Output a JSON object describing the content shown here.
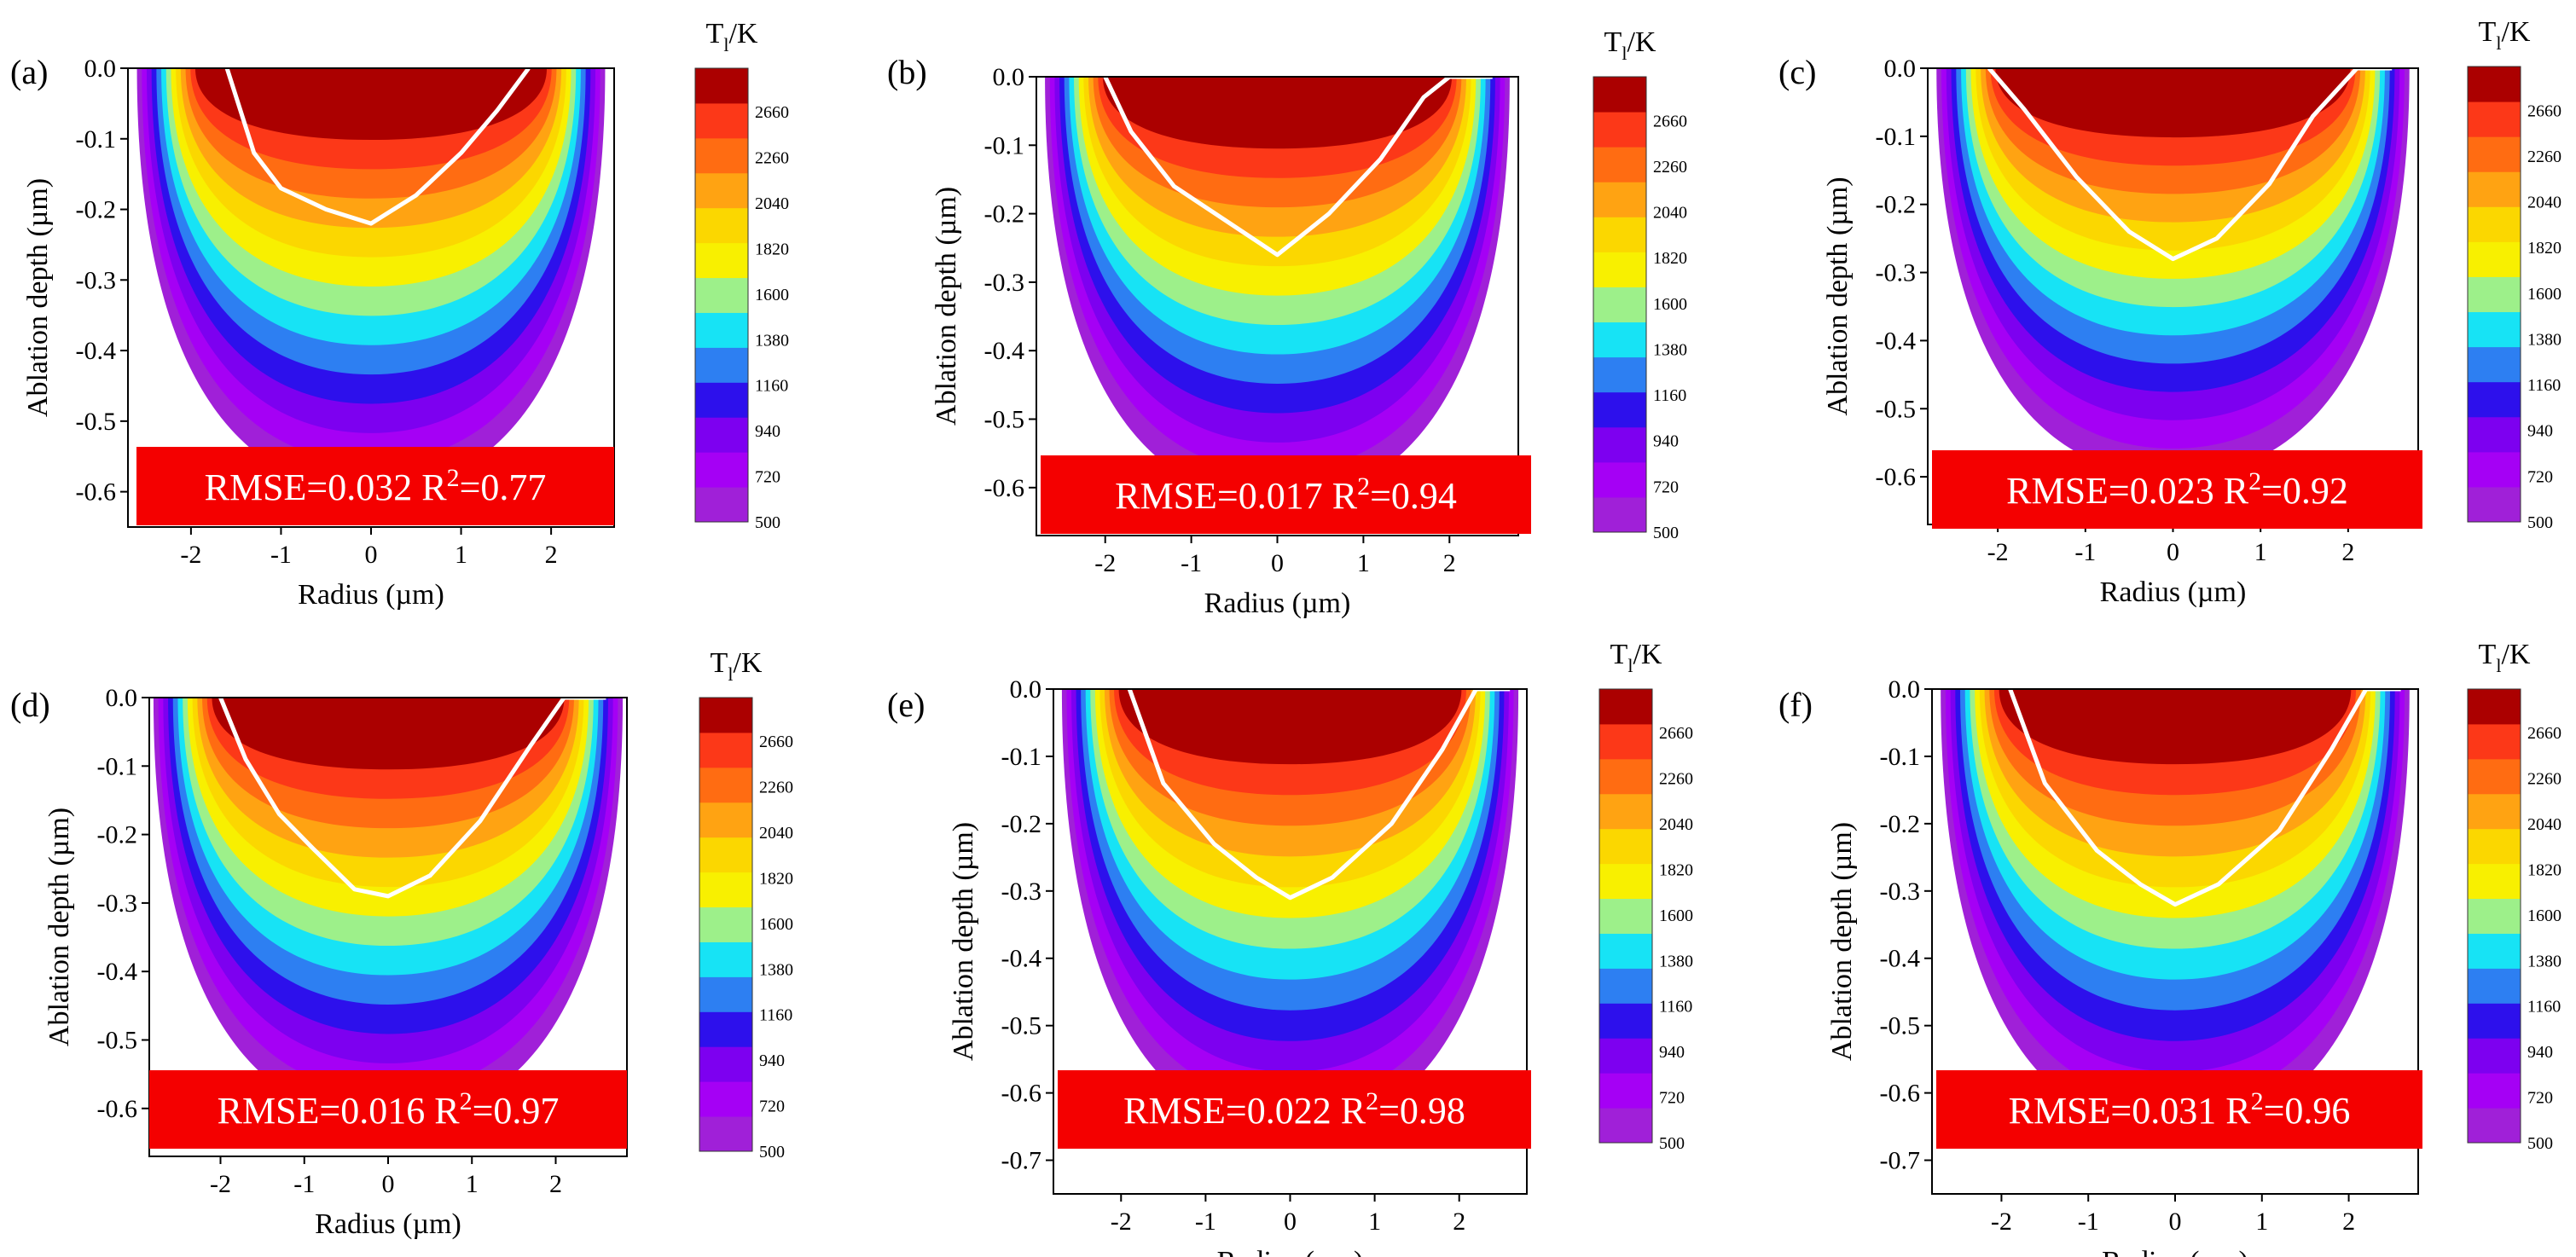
{
  "colors": {
    "bands": [
      "#a020d8",
      "#a500f5",
      "#7d00f0",
      "#2d10ec",
      "#2d7ff2",
      "#17e3f5",
      "#9df08a",
      "#f8f000",
      "#fbd700",
      "#ffa312",
      "#ff6c12",
      "#fc3818",
      "#ab0000"
    ],
    "fit_line": "#ffffff",
    "badge": "#f40000"
  },
  "colorbar": {
    "title_main": "T",
    "title_sub": "l",
    "title_tail": "/K",
    "tick_labels": [
      "500",
      "720",
      "940",
      "1160",
      "1380",
      "1600",
      "1820",
      "2040",
      "2260",
      "2660"
    ]
  },
  "chart_data": [
    {
      "type": "heatmap",
      "panel": "(a)",
      "xlabel": "Radius (µm)",
      "ylabel": "Ablation depth (µm)",
      "xlim": [
        -2.7,
        2.7
      ],
      "ylim": [
        -0.65,
        0
      ],
      "xticks": [
        -2,
        -1,
        0,
        1,
        2
      ],
      "yticks": [
        0.0,
        -0.1,
        -0.2,
        -0.3,
        -0.4,
        -0.5,
        -0.6
      ],
      "tick_labels_x": [
        "-2",
        "-1",
        "0",
        "1",
        "2"
      ],
      "tick_labels_y": [
        "0.0",
        "-0.1",
        "-0.2",
        "-0.3",
        "-0.4",
        "-0.5",
        "-0.6"
      ],
      "field": {
        "half_width_um": 2.6,
        "depth_um": 0.6
      },
      "ablation_profile": {
        "x": [
          -1.6,
          -1.3,
          -1.0,
          -0.5,
          0.0,
          0.5,
          1.0,
          1.4,
          1.75
        ],
        "y": [
          0.0,
          -0.12,
          -0.17,
          -0.2,
          -0.22,
          -0.18,
          -0.12,
          -0.06,
          0.0
        ]
      },
      "rmse_text": "RMSE=0.032 R",
      "r2_text": "=0.77",
      "superscript": "2",
      "colorbar_label": "T_l/K"
    },
    {
      "type": "heatmap",
      "panel": "(b)",
      "xlabel": "Radius (µm)",
      "ylabel": "Ablation depth (µm)",
      "xlim": [
        -2.8,
        2.8
      ],
      "ylim": [
        -0.67,
        0
      ],
      "xticks": [
        -2,
        -1,
        0,
        1,
        2
      ],
      "yticks": [
        0.0,
        -0.1,
        -0.2,
        -0.3,
        -0.4,
        -0.5,
        -0.6
      ],
      "tick_labels_x": [
        "-2",
        "-1",
        "0",
        "1",
        "2"
      ],
      "tick_labels_y": [
        "0.0",
        "-0.1",
        "-0.2",
        "-0.3",
        "-0.4",
        "-0.5",
        "-0.6"
      ],
      "field": {
        "half_width_um": 2.7,
        "depth_um": 0.62
      },
      "ablation_profile": {
        "x": [
          -2.0,
          -1.7,
          -1.2,
          -0.6,
          0.0,
          0.6,
          1.2,
          1.7,
          2.0,
          2.5
        ],
        "y": [
          0.0,
          -0.08,
          -0.16,
          -0.21,
          -0.26,
          -0.2,
          -0.12,
          -0.03,
          0.0,
          0.0
        ]
      },
      "rmse_text": "RMSE=0.017 R",
      "r2_text": "=0.94",
      "superscript": "2",
      "colorbar_label": "T_l/K"
    },
    {
      "type": "heatmap",
      "panel": "(c)",
      "xlabel": "Radius (µm)",
      "ylabel": "Ablation depth (µm)",
      "xlim": [
        -2.8,
        2.8
      ],
      "ylim": [
        -0.67,
        0
      ],
      "xticks": [
        -2,
        -1,
        0,
        1,
        2
      ],
      "yticks": [
        0.0,
        -0.1,
        -0.2,
        -0.3,
        -0.4,
        -0.5,
        -0.6
      ],
      "tick_labels_x": [
        "-2",
        "-1",
        "0",
        "1",
        "2"
      ],
      "tick_labels_y": [
        "0.0",
        "-0.1",
        "-0.2",
        "-0.3",
        "-0.4",
        "-0.5",
        "-0.6"
      ],
      "field": {
        "half_width_um": 2.7,
        "depth_um": 0.6
      },
      "ablation_profile": {
        "x": [
          -2.1,
          -1.7,
          -1.1,
          -0.5,
          0.0,
          0.5,
          1.1,
          1.6,
          2.1,
          2.5
        ],
        "y": [
          0.0,
          -0.06,
          -0.16,
          -0.24,
          -0.28,
          -0.25,
          -0.17,
          -0.07,
          0.0,
          0.0
        ]
      },
      "rmse_text": "RMSE=0.023 R",
      "r2_text": "=0.92",
      "superscript": "2",
      "colorbar_label": "T_l/K"
    },
    {
      "type": "heatmap",
      "panel": "(d)",
      "xlabel": "Radius (µm)",
      "ylabel": "Ablation depth (µm)",
      "xlim": [
        -2.85,
        2.85
      ],
      "ylim": [
        -0.67,
        0
      ],
      "xticks": [
        -2,
        -1,
        0,
        1,
        2
      ],
      "yticks": [
        0.0,
        -0.1,
        -0.2,
        -0.3,
        -0.4,
        -0.5,
        -0.6
      ],
      "tick_labels_x": [
        "-2",
        "-1",
        "0",
        "1",
        "2"
      ],
      "tick_labels_y": [
        "0.0",
        "-0.1",
        "-0.2",
        "-0.3",
        "-0.4",
        "-0.5",
        "-0.6"
      ],
      "field": {
        "half_width_um": 2.8,
        "depth_um": 0.62
      },
      "ablation_profile": {
        "x": [
          -2.0,
          -1.7,
          -1.3,
          -0.9,
          -0.4,
          0.0,
          0.5,
          1.1,
          1.7,
          2.1,
          2.6
        ],
        "y": [
          0.0,
          -0.09,
          -0.17,
          -0.22,
          -0.28,
          -0.29,
          -0.26,
          -0.18,
          -0.07,
          0.0,
          0.0
        ]
      },
      "rmse_text": "RMSE=0.016 R",
      "r2_text": "=0.97",
      "superscript": "2",
      "colorbar_label": "T_l/K"
    },
    {
      "type": "heatmap",
      "panel": "(e)",
      "xlabel": "Radius (µm)",
      "ylabel": "Ablation depth (µm)",
      "xlim": [
        -2.8,
        2.8
      ],
      "ylim": [
        -0.75,
        0
      ],
      "xticks": [
        -2,
        -1,
        0,
        1,
        2
      ],
      "yticks": [
        0.0,
        -0.1,
        -0.2,
        -0.3,
        -0.4,
        -0.5,
        -0.6,
        -0.7
      ],
      "tick_labels_x": [
        "-2",
        "-1",
        "0",
        "1",
        "2"
      ],
      "tick_labels_y": [
        "0.0",
        "-0.1",
        "-0.2",
        "-0.3",
        "-0.4",
        "-0.5",
        "-0.6",
        "-0.7"
      ],
      "field": {
        "half_width_um": 2.7,
        "depth_um": 0.66
      },
      "ablation_profile": {
        "x": [
          -1.9,
          -1.5,
          -0.9,
          -0.4,
          0.0,
          0.5,
          1.2,
          1.8,
          2.2,
          2.6
        ],
        "y": [
          0.0,
          -0.14,
          -0.23,
          -0.28,
          -0.31,
          -0.28,
          -0.2,
          -0.09,
          0.0,
          0.0
        ]
      },
      "rmse_text": "RMSE=0.022 R",
      "r2_text": "=0.98",
      "superscript": "2",
      "colorbar_label": "T_l/K"
    },
    {
      "type": "heatmap",
      "panel": "(f)",
      "xlabel": "Radius (µm)",
      "ylabel": "Ablation depth (µm)",
      "xlim": [
        -2.8,
        2.8
      ],
      "ylim": [
        -0.75,
        0
      ],
      "xticks": [
        -2,
        -1,
        0,
        1,
        2
      ],
      "yticks": [
        0.0,
        -0.1,
        -0.2,
        -0.3,
        -0.4,
        -0.5,
        -0.6,
        -0.7
      ],
      "tick_labels_x": [
        "-2",
        "-1",
        "0",
        "1",
        "2"
      ],
      "tick_labels_y": [
        "0.0",
        "-0.1",
        "-0.2",
        "-0.3",
        "-0.4",
        "-0.5",
        "-0.6",
        "-0.7"
      ],
      "field": {
        "half_width_um": 2.7,
        "depth_um": 0.66
      },
      "ablation_profile": {
        "x": [
          -1.9,
          -1.5,
          -0.9,
          -0.4,
          0.0,
          0.5,
          1.2,
          1.8,
          2.2,
          2.6
        ],
        "y": [
          0.0,
          -0.14,
          -0.24,
          -0.29,
          -0.32,
          -0.29,
          -0.21,
          -0.09,
          0.0,
          0.0
        ]
      },
      "rmse_text": "RMSE=0.031 R",
      "r2_text": "=0.96",
      "superscript": "2",
      "colorbar_label": "T_l/K"
    }
  ]
}
